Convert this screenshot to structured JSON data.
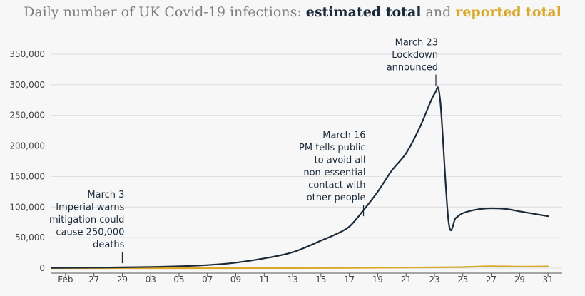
{
  "chart_data": {
    "type": "line",
    "title_prefix": "Daily number of UK Covid-19 infections:",
    "title_series1": "estimated total",
    "title_and": "and",
    "title_series2": "reported total",
    "ylim": [
      0,
      350000
    ],
    "yticks": [
      0,
      50000,
      100000,
      150000,
      200000,
      250000,
      300000,
      350000
    ],
    "ytick_labels": [
      "0",
      "50,000",
      "100,000",
      "150,000",
      "200,000",
      "250,000",
      "300,000",
      "350,000"
    ],
    "xlim": [
      -1,
      35
    ],
    "xticks": [
      0,
      2,
      4,
      6,
      8,
      10,
      12,
      14,
      16,
      18,
      20,
      22,
      24,
      26,
      28,
      30,
      32,
      34
    ],
    "xtick_labels": [
      "Feb",
      "27",
      "29",
      "03",
      "05",
      "07",
      "09",
      "11",
      "13",
      "15",
      "17",
      "19",
      "21",
      "23",
      "25",
      "27",
      "29",
      "31"
    ],
    "x_unit": "days since 25 Feb",
    "series": [
      {
        "name": "estimated total",
        "color": "#1b2a3a",
        "x": [
          -1,
          0,
          2,
          4,
          6,
          8,
          10,
          12,
          14,
          16,
          18,
          19,
          20,
          21,
          22,
          23,
          24,
          25,
          26,
          26.4,
          27,
          27.5,
          28,
          29,
          30,
          31,
          32,
          33,
          34
        ],
        "values": [
          500,
          600,
          800,
          1300,
          2000,
          3000,
          5000,
          9000,
          16000,
          26000,
          45000,
          55000,
          68000,
          95000,
          125000,
          160000,
          188000,
          232000,
          285000,
          275000,
          75000,
          82000,
          90000,
          96000,
          98000,
          97000,
          93000,
          89000,
          85000
        ]
      },
      {
        "name": "reported total",
        "color": "#d9a829",
        "x": [
          -1,
          10,
          16,
          20,
          22,
          24,
          26,
          28,
          30,
          32,
          34
        ],
        "values": [
          0,
          50,
          150,
          400,
          700,
          1000,
          1300,
          1800,
          3000,
          2500,
          2800
        ]
      }
    ],
    "annotations": [
      {
        "x": 4,
        "y": 8000,
        "lines": [
          "March 3",
          "Imperial warns",
          "mitigation could",
          "cause 250,000",
          "deaths"
        ]
      },
      {
        "x": 21,
        "y": 85000,
        "lines": [
          "March 16",
          "PM tells public",
          "to avoid all",
          "non-essential",
          "contact with",
          "other people"
        ]
      },
      {
        "x": 26.1,
        "y": 298000,
        "lines": [
          "March 23",
          "Lockdown",
          "announced"
        ]
      }
    ]
  }
}
